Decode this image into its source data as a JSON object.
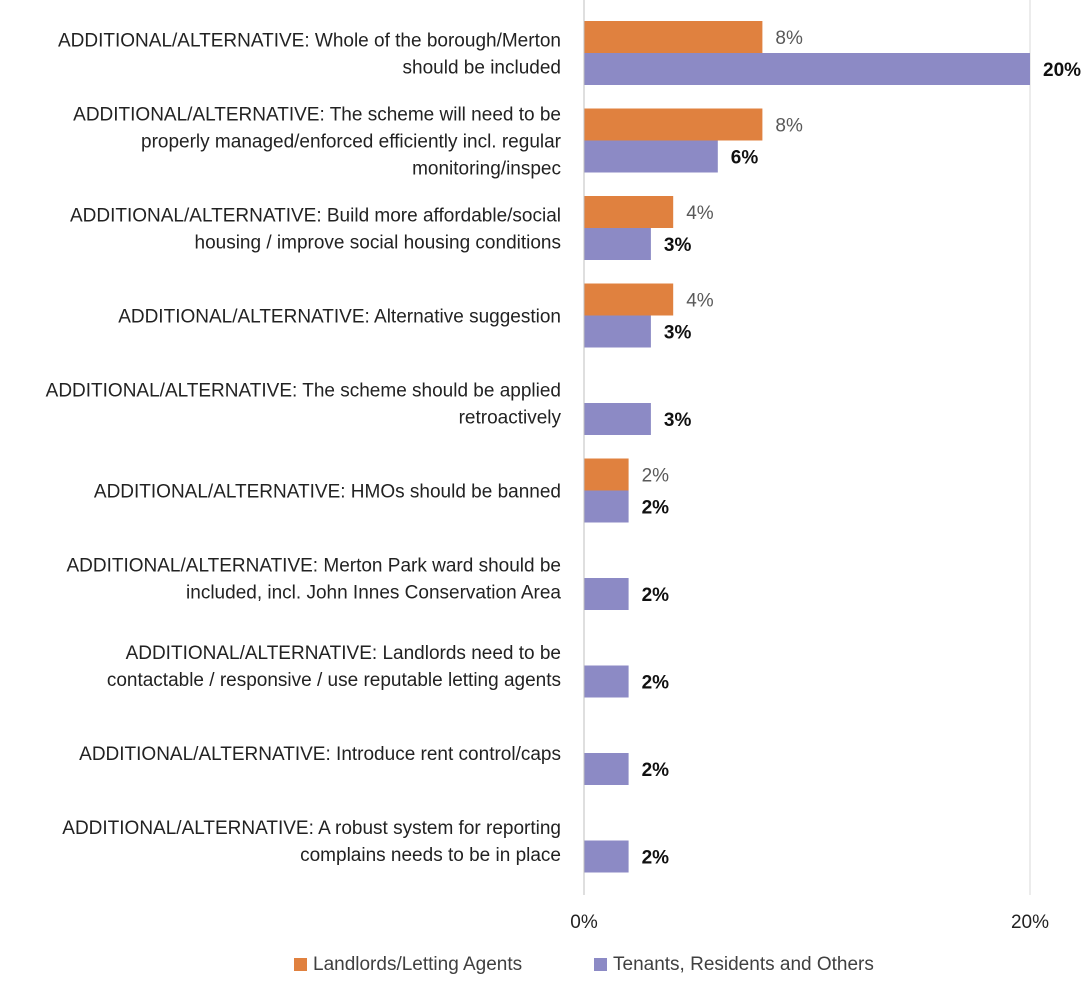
{
  "chart_data": {
    "type": "bar",
    "orientation": "horizontal",
    "categories": [
      [
        "ADDITIONAL/ALTERNATIVE: Whole of the borough/Merton",
        "should be included"
      ],
      [
        "ADDITIONAL/ALTERNATIVE: The scheme will need to be",
        "properly managed/enforced efficiently incl. regular",
        "monitoring/inspec"
      ],
      [
        "ADDITIONAL/ALTERNATIVE: Build more affordable/social",
        "housing / improve social housing conditions"
      ],
      [
        "ADDITIONAL/ALTERNATIVE: Alternative suggestion"
      ],
      [
        "ADDITIONAL/ALTERNATIVE: The scheme should be applied",
        "retroactively"
      ],
      [
        "ADDITIONAL/ALTERNATIVE: HMOs should be banned"
      ],
      [
        "ADDITIONAL/ALTERNATIVE: Merton Park ward  should be",
        "included, incl. John Innes Conservation Area"
      ],
      [
        "ADDITIONAL/ALTERNATIVE: Landlords need to be",
        "contactable / responsive / use reputable letting agents"
      ],
      [
        "ADDITIONAL/ALTERNATIVE: Introduce rent control/caps"
      ],
      [
        "ADDITIONAL/ALTERNATIVE: A robust system for reporting",
        "complains needs to be in place"
      ]
    ],
    "series": [
      {
        "name": "Landlords/Letting Agents",
        "color": "#e0813f",
        "values": [
          8,
          8,
          4,
          4,
          null,
          2,
          null,
          null,
          null,
          null
        ],
        "labels": [
          "8%",
          "8%",
          "4%",
          "4%",
          "",
          "2%",
          "",
          "",
          "",
          ""
        ]
      },
      {
        "name": "Tenants, Residents and Others",
        "color": "#8c8ac5",
        "values": [
          20,
          6,
          3,
          3,
          3,
          2,
          2,
          2,
          2,
          2
        ],
        "labels": [
          "20%",
          "6%",
          "3%",
          "3%",
          "3%",
          "2%",
          "2%",
          "2%",
          "2%",
          "2%"
        ]
      }
    ],
    "xlim": [
      0,
      20
    ],
    "xticks": [
      0,
      20
    ],
    "xtick_labels": [
      "0%",
      "20%"
    ],
    "grid": true,
    "legend_position": "bottom"
  }
}
